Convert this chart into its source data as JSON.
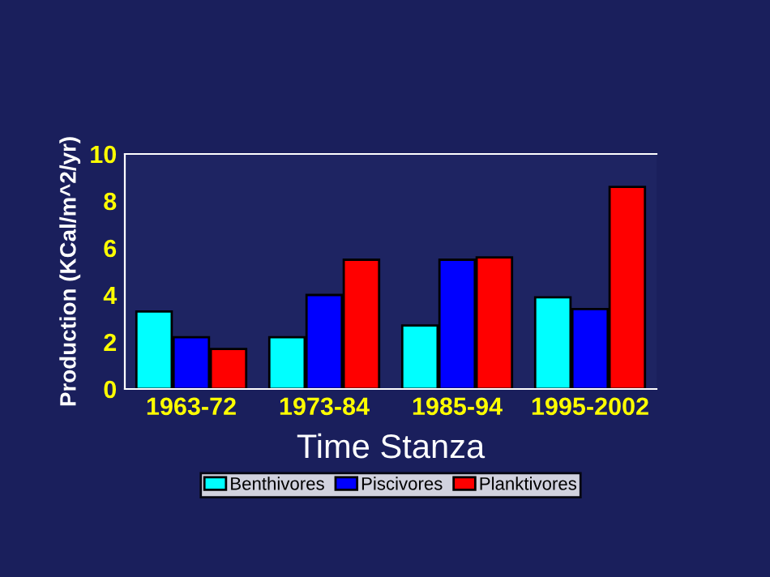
{
  "chart_data": {
    "type": "bar",
    "xlabel": "Time Stanza",
    "ylabel": "Production (KCal/m^2/yr)",
    "categories": [
      "1963-72",
      "1973-84",
      "1985-94",
      "1995-2002"
    ],
    "series": [
      {
        "name": "Benthivores",
        "color": "#00ffff",
        "values": [
          3.3,
          2.2,
          2.7,
          3.9
        ]
      },
      {
        "name": "Piscivores",
        "color": "#0000ff",
        "values": [
          2.2,
          4.0,
          5.5,
          3.4
        ]
      },
      {
        "name": "Planktivores",
        "color": "#ff0000",
        "values": [
          1.7,
          5.5,
          5.6,
          8.6
        ]
      }
    ],
    "ylim": [
      0,
      10
    ],
    "yticks": [
      0,
      2,
      4,
      6,
      8,
      10
    ],
    "grid": false,
    "legend": "bottom"
  }
}
